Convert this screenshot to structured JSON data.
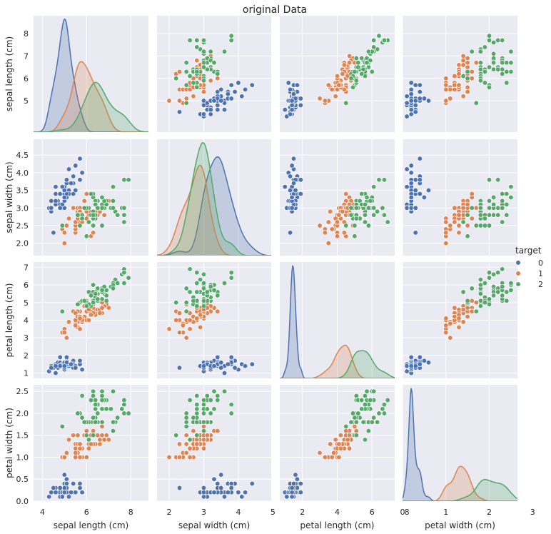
{
  "chart_data": {
    "type": "scatter",
    "kind": "pairplot",
    "title": "original Data",
    "variables": [
      "sepal length (cm)",
      "sepal width (cm)",
      "petal length (cm)",
      "petal width (cm)"
    ],
    "ranges": [
      [
        3.6,
        8.8
      ],
      [
        1.65,
        4.95
      ],
      [
        0.7,
        7.3
      ],
      [
        0.0,
        2.65
      ]
    ],
    "ticks": [
      [
        4,
        6,
        8
      ],
      [
        2,
        3,
        4,
        5
      ],
      [
        2,
        4,
        6,
        8
      ],
      [
        0,
        1,
        2,
        3
      ]
    ],
    "yticks": [
      [
        5,
        6,
        7,
        8
      ],
      [
        2.0,
        2.5,
        3.0,
        3.5,
        4.0,
        4.5
      ],
      [
        1,
        2,
        3,
        4,
        5,
        6,
        7
      ],
      [
        0.0,
        0.5,
        1.0,
        1.5,
        2.0,
        2.5
      ]
    ],
    "yticklabels": [
      [
        "5",
        "6",
        "7",
        "8"
      ],
      [
        "2.0",
        "2.5",
        "3.0",
        "3.5",
        "4.0",
        "4.5"
      ],
      [
        "1",
        "2",
        "3",
        "4",
        "5",
        "6",
        "7"
      ],
      [
        "0.0",
        "0.5",
        "1.0",
        "1.5",
        "2.0",
        "2.5"
      ]
    ],
    "diag_peak": [
      [
        1.25,
        0.78,
        0.55
      ],
      [
        1.18,
        1.08,
        1.35
      ],
      [
        2.45,
        0.72,
        0.6
      ],
      [
        6.8,
        2.1,
        1.3
      ]
    ],
    "legend": {
      "title": "target",
      "placement": "center-right",
      "entries": [
        "0",
        "1",
        "2"
      ]
    },
    "series_colors": [
      "#4c72b0",
      "#dd8452",
      "#55a868"
    ],
    "series": [
      {
        "name": "0",
        "points": [
          [
            5.1,
            3.5,
            1.4,
            0.2
          ],
          [
            4.9,
            3.0,
            1.4,
            0.2
          ],
          [
            4.7,
            3.2,
            1.3,
            0.2
          ],
          [
            4.6,
            3.1,
            1.5,
            0.2
          ],
          [
            5.0,
            3.6,
            1.4,
            0.2
          ],
          [
            5.4,
            3.9,
            1.7,
            0.4
          ],
          [
            4.6,
            3.4,
            1.4,
            0.3
          ],
          [
            5.0,
            3.4,
            1.5,
            0.2
          ],
          [
            4.4,
            2.9,
            1.4,
            0.2
          ],
          [
            4.9,
            3.1,
            1.5,
            0.1
          ],
          [
            5.4,
            3.7,
            1.5,
            0.2
          ],
          [
            4.8,
            3.4,
            1.6,
            0.2
          ],
          [
            4.8,
            3.0,
            1.4,
            0.1
          ],
          [
            4.3,
            3.0,
            1.1,
            0.1
          ],
          [
            5.8,
            4.0,
            1.2,
            0.2
          ],
          [
            5.7,
            4.4,
            1.5,
            0.4
          ],
          [
            5.4,
            3.9,
            1.3,
            0.4
          ],
          [
            5.1,
            3.5,
            1.4,
            0.3
          ],
          [
            5.7,
            3.8,
            1.7,
            0.3
          ],
          [
            5.1,
            3.8,
            1.5,
            0.3
          ],
          [
            5.4,
            3.4,
            1.7,
            0.2
          ],
          [
            5.1,
            3.7,
            1.5,
            0.4
          ],
          [
            4.6,
            3.6,
            1.0,
            0.2
          ],
          [
            5.1,
            3.3,
            1.7,
            0.5
          ],
          [
            4.8,
            3.4,
            1.9,
            0.2
          ],
          [
            5.0,
            3.0,
            1.6,
            0.2
          ],
          [
            5.0,
            3.4,
            1.6,
            0.4
          ],
          [
            5.2,
            3.5,
            1.5,
            0.2
          ],
          [
            5.2,
            3.4,
            1.4,
            0.2
          ],
          [
            4.7,
            3.2,
            1.6,
            0.2
          ],
          [
            4.8,
            3.1,
            1.6,
            0.2
          ],
          [
            5.4,
            3.4,
            1.5,
            0.4
          ],
          [
            5.2,
            4.1,
            1.5,
            0.1
          ],
          [
            5.5,
            4.2,
            1.4,
            0.2
          ],
          [
            4.9,
            3.1,
            1.5,
            0.2
          ],
          [
            5.0,
            3.2,
            1.2,
            0.2
          ],
          [
            5.5,
            3.5,
            1.3,
            0.2
          ],
          [
            4.9,
            3.6,
            1.4,
            0.1
          ],
          [
            4.4,
            3.0,
            1.3,
            0.2
          ],
          [
            5.1,
            3.4,
            1.5,
            0.2
          ],
          [
            5.0,
            3.5,
            1.3,
            0.3
          ],
          [
            4.5,
            2.3,
            1.3,
            0.3
          ],
          [
            4.4,
            3.2,
            1.3,
            0.2
          ],
          [
            5.0,
            3.5,
            1.6,
            0.6
          ],
          [
            5.1,
            3.8,
            1.9,
            0.4
          ],
          [
            4.8,
            3.0,
            1.4,
            0.3
          ],
          [
            5.1,
            3.8,
            1.6,
            0.2
          ],
          [
            4.6,
            3.2,
            1.4,
            0.2
          ],
          [
            5.3,
            3.7,
            1.5,
            0.2
          ],
          [
            5.0,
            3.3,
            1.4,
            0.2
          ]
        ]
      },
      {
        "name": "1",
        "points": [
          [
            7.0,
            3.2,
            4.7,
            1.4
          ],
          [
            6.4,
            3.2,
            4.5,
            1.5
          ],
          [
            6.9,
            3.1,
            4.9,
            1.5
          ],
          [
            5.5,
            2.3,
            4.0,
            1.3
          ],
          [
            6.5,
            2.8,
            4.6,
            1.5
          ],
          [
            5.7,
            2.8,
            4.5,
            1.3
          ],
          [
            6.3,
            3.3,
            4.7,
            1.6
          ],
          [
            4.9,
            2.4,
            3.3,
            1.0
          ],
          [
            6.6,
            2.9,
            4.6,
            1.3
          ],
          [
            5.2,
            2.7,
            3.9,
            1.4
          ],
          [
            5.0,
            2.0,
            3.5,
            1.0
          ],
          [
            5.9,
            3.0,
            4.2,
            1.5
          ],
          [
            6.0,
            2.2,
            4.0,
            1.0
          ],
          [
            6.1,
            2.9,
            4.7,
            1.4
          ],
          [
            5.6,
            2.9,
            3.6,
            1.3
          ],
          [
            6.7,
            3.1,
            4.4,
            1.4
          ],
          [
            5.6,
            3.0,
            4.5,
            1.5
          ],
          [
            5.8,
            2.7,
            4.1,
            1.0
          ],
          [
            6.2,
            2.2,
            4.5,
            1.5
          ],
          [
            5.6,
            2.5,
            3.9,
            1.1
          ],
          [
            5.9,
            3.2,
            4.8,
            1.8
          ],
          [
            6.1,
            2.8,
            4.0,
            1.3
          ],
          [
            6.3,
            2.5,
            4.9,
            1.5
          ],
          [
            6.1,
            2.8,
            4.7,
            1.2
          ],
          [
            6.4,
            2.9,
            4.3,
            1.3
          ],
          [
            6.6,
            3.0,
            4.4,
            1.4
          ],
          [
            6.8,
            2.8,
            4.8,
            1.4
          ],
          [
            6.7,
            3.0,
            5.0,
            1.7
          ],
          [
            6.0,
            2.9,
            4.5,
            1.5
          ],
          [
            5.7,
            2.6,
            3.5,
            1.0
          ],
          [
            5.5,
            2.4,
            3.8,
            1.1
          ],
          [
            5.5,
            2.4,
            3.7,
            1.0
          ],
          [
            5.8,
            2.7,
            3.9,
            1.2
          ],
          [
            6.0,
            2.7,
            5.1,
            1.6
          ],
          [
            5.4,
            3.0,
            4.5,
            1.5
          ],
          [
            6.0,
            3.4,
            4.5,
            1.6
          ],
          [
            6.7,
            3.1,
            4.7,
            1.5
          ],
          [
            6.3,
            2.3,
            4.4,
            1.3
          ],
          [
            5.6,
            3.0,
            4.1,
            1.3
          ],
          [
            5.5,
            2.5,
            4.0,
            1.3
          ],
          [
            5.5,
            2.6,
            4.4,
            1.2
          ],
          [
            6.1,
            3.0,
            4.6,
            1.4
          ],
          [
            5.8,
            2.6,
            4.0,
            1.2
          ],
          [
            5.0,
            2.3,
            3.3,
            1.0
          ],
          [
            5.6,
            2.7,
            4.2,
            1.3
          ],
          [
            5.7,
            3.0,
            4.2,
            1.2
          ],
          [
            5.7,
            2.9,
            4.2,
            1.3
          ],
          [
            6.2,
            2.9,
            4.3,
            1.3
          ],
          [
            5.1,
            2.5,
            3.0,
            1.1
          ],
          [
            5.7,
            2.8,
            4.1,
            1.3
          ]
        ]
      },
      {
        "name": "2",
        "points": [
          [
            6.3,
            3.3,
            6.0,
            2.5
          ],
          [
            5.8,
            2.7,
            5.1,
            1.9
          ],
          [
            7.1,
            3.0,
            5.9,
            2.1
          ],
          [
            6.3,
            2.9,
            5.6,
            1.8
          ],
          [
            6.5,
            3.0,
            5.8,
            2.2
          ],
          [
            7.6,
            3.0,
            6.6,
            2.1
          ],
          [
            4.9,
            2.5,
            4.5,
            1.7
          ],
          [
            7.3,
            2.9,
            6.3,
            1.8
          ],
          [
            6.7,
            2.5,
            5.8,
            1.8
          ],
          [
            7.2,
            3.6,
            6.1,
            2.5
          ],
          [
            6.5,
            3.2,
            5.1,
            2.0
          ],
          [
            6.4,
            2.7,
            5.3,
            1.9
          ],
          [
            6.8,
            3.0,
            5.5,
            2.1
          ],
          [
            5.7,
            2.5,
            5.0,
            2.0
          ],
          [
            5.8,
            2.8,
            5.1,
            2.4
          ],
          [
            6.4,
            3.2,
            5.3,
            2.3
          ],
          [
            6.5,
            3.0,
            5.5,
            1.8
          ],
          [
            7.7,
            3.8,
            6.7,
            2.2
          ],
          [
            7.7,
            2.6,
            6.9,
            2.3
          ],
          [
            6.0,
            2.2,
            5.0,
            1.5
          ],
          [
            6.9,
            3.2,
            5.7,
            2.3
          ],
          [
            5.6,
            2.8,
            4.9,
            2.0
          ],
          [
            7.7,
            2.8,
            6.7,
            2.0
          ],
          [
            6.3,
            2.7,
            4.9,
            1.8
          ],
          [
            6.7,
            3.3,
            5.7,
            2.1
          ],
          [
            7.2,
            3.2,
            6.0,
            1.8
          ],
          [
            6.2,
            2.8,
            4.8,
            1.8
          ],
          [
            6.1,
            3.0,
            4.9,
            1.8
          ],
          [
            6.4,
            2.8,
            5.6,
            2.1
          ],
          [
            7.2,
            3.0,
            5.8,
            1.6
          ],
          [
            7.4,
            2.8,
            6.1,
            1.9
          ],
          [
            7.9,
            3.8,
            6.4,
            2.0
          ],
          [
            6.4,
            2.8,
            5.6,
            2.2
          ],
          [
            6.3,
            2.8,
            5.1,
            1.5
          ],
          [
            6.1,
            2.6,
            5.6,
            1.4
          ],
          [
            7.7,
            3.0,
            6.1,
            2.3
          ],
          [
            6.3,
            3.4,
            5.6,
            2.4
          ],
          [
            6.4,
            3.1,
            5.5,
            1.8
          ],
          [
            6.0,
            3.0,
            4.8,
            1.8
          ],
          [
            6.9,
            3.1,
            5.4,
            2.1
          ],
          [
            6.7,
            3.1,
            5.6,
            2.4
          ],
          [
            6.9,
            3.1,
            5.1,
            2.3
          ],
          [
            5.8,
            2.7,
            5.1,
            1.9
          ],
          [
            6.8,
            3.2,
            5.9,
            2.3
          ],
          [
            6.7,
            3.3,
            5.7,
            2.5
          ],
          [
            6.7,
            3.0,
            5.2,
            2.3
          ],
          [
            6.3,
            2.5,
            5.0,
            1.9
          ],
          [
            6.5,
            3.0,
            5.2,
            2.0
          ],
          [
            6.2,
            3.4,
            5.4,
            2.3
          ],
          [
            5.9,
            3.0,
            5.1,
            1.8
          ]
        ]
      }
    ]
  }
}
